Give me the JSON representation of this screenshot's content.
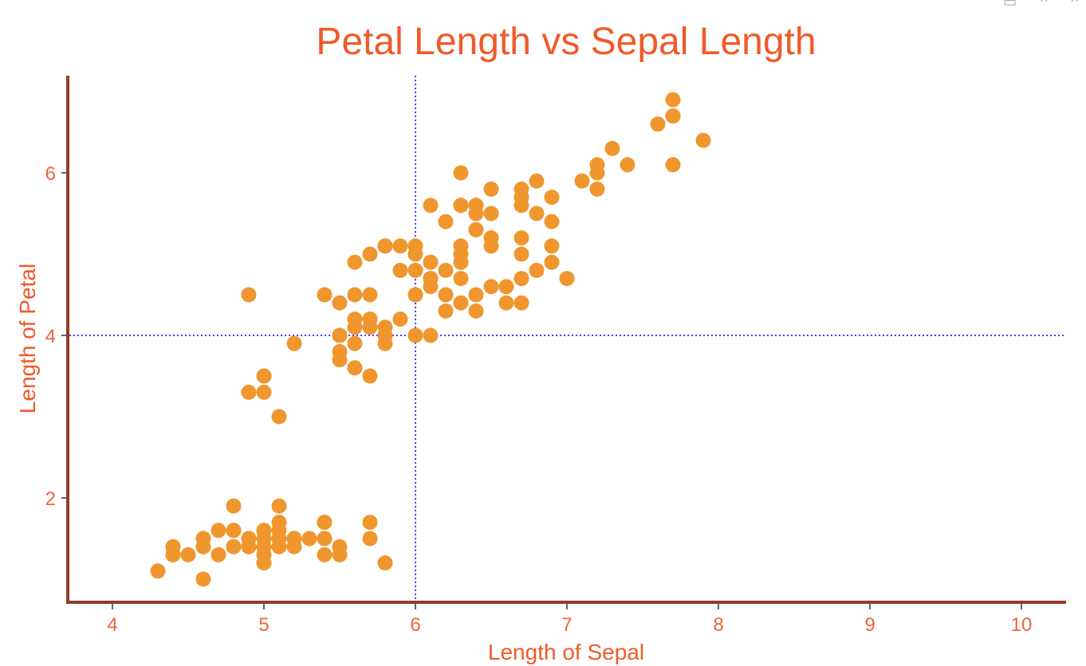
{
  "window_controls": [
    "export-icon",
    "collapse-icon",
    "collapse-icon"
  ],
  "chart_data": {
    "type": "scatter",
    "title": "Petal Length vs Sepal Length",
    "xlabel": "Length of Sepal",
    "ylabel": "Length of Petal",
    "xlim": [
      3.7,
      10.3
    ],
    "ylim": [
      0.72,
      7.2
    ],
    "xticks": [
      4,
      5,
      6,
      7,
      8,
      9,
      10
    ],
    "yticks": [
      2,
      4,
      6
    ],
    "grid": false,
    "reference_lines": {
      "x": 6,
      "y": 4,
      "style": "dotted",
      "color": "#0000ff"
    },
    "colors": {
      "title": "#f05a28",
      "tick_labels": "#f0643a",
      "points": "#f0962e",
      "axis": "#963a2c"
    },
    "points": [
      [
        5.1,
        1.4
      ],
      [
        4.9,
        1.4
      ],
      [
        4.7,
        1.3
      ],
      [
        4.6,
        1.5
      ],
      [
        5.0,
        1.4
      ],
      [
        5.4,
        1.7
      ],
      [
        4.6,
        1.4
      ],
      [
        5.0,
        1.5
      ],
      [
        4.4,
        1.4
      ],
      [
        4.9,
        1.5
      ],
      [
        5.4,
        1.5
      ],
      [
        4.8,
        1.6
      ],
      [
        4.8,
        1.4
      ],
      [
        4.3,
        1.1
      ],
      [
        5.8,
        1.2
      ],
      [
        5.7,
        1.5
      ],
      [
        5.4,
        1.3
      ],
      [
        5.1,
        1.4
      ],
      [
        5.7,
        1.7
      ],
      [
        5.1,
        1.5
      ],
      [
        5.4,
        1.7
      ],
      [
        5.1,
        1.5
      ],
      [
        4.6,
        1.0
      ],
      [
        5.1,
        1.7
      ],
      [
        4.8,
        1.9
      ],
      [
        5.0,
        1.6
      ],
      [
        5.0,
        1.6
      ],
      [
        5.2,
        1.5
      ],
      [
        5.2,
        1.4
      ],
      [
        4.7,
        1.6
      ],
      [
        4.8,
        1.6
      ],
      [
        5.4,
        1.5
      ],
      [
        5.2,
        1.5
      ],
      [
        5.5,
        1.4
      ],
      [
        4.9,
        1.5
      ],
      [
        5.0,
        1.2
      ],
      [
        5.5,
        1.3
      ],
      [
        4.9,
        1.4
      ],
      [
        4.4,
        1.3
      ],
      [
        5.1,
        1.5
      ],
      [
        5.0,
        1.3
      ],
      [
        4.5,
        1.3
      ],
      [
        4.4,
        1.3
      ],
      [
        5.0,
        1.6
      ],
      [
        5.1,
        1.9
      ],
      [
        4.8,
        1.4
      ],
      [
        5.1,
        1.6
      ],
      [
        4.6,
        1.4
      ],
      [
        5.3,
        1.5
      ],
      [
        5.0,
        1.4
      ],
      [
        7.0,
        4.7
      ],
      [
        6.4,
        4.5
      ],
      [
        6.9,
        4.9
      ],
      [
        5.5,
        4.0
      ],
      [
        6.5,
        4.6
      ],
      [
        5.7,
        4.5
      ],
      [
        6.3,
        4.7
      ],
      [
        4.9,
        3.3
      ],
      [
        6.6,
        4.6
      ],
      [
        5.2,
        3.9
      ],
      [
        5.0,
        3.5
      ],
      [
        5.9,
        4.2
      ],
      [
        6.0,
        4.0
      ],
      [
        6.1,
        4.7
      ],
      [
        5.6,
        3.6
      ],
      [
        6.7,
        4.4
      ],
      [
        5.6,
        4.5
      ],
      [
        5.8,
        4.1
      ],
      [
        6.2,
        4.5
      ],
      [
        5.6,
        3.9
      ],
      [
        5.9,
        4.8
      ],
      [
        6.1,
        4.0
      ],
      [
        6.3,
        4.9
      ],
      [
        6.1,
        4.7
      ],
      [
        6.4,
        4.3
      ],
      [
        6.6,
        4.4
      ],
      [
        6.8,
        4.8
      ],
      [
        6.7,
        5.0
      ],
      [
        6.0,
        4.5
      ],
      [
        5.7,
        3.5
      ],
      [
        5.5,
        3.8
      ],
      [
        5.5,
        3.7
      ],
      [
        5.8,
        3.9
      ],
      [
        6.0,
        5.1
      ],
      [
        5.4,
        4.5
      ],
      [
        6.0,
        4.5
      ],
      [
        6.7,
        4.7
      ],
      [
        6.3,
        4.4
      ],
      [
        5.6,
        4.1
      ],
      [
        5.5,
        4.0
      ],
      [
        5.5,
        4.4
      ],
      [
        6.1,
        4.6
      ],
      [
        5.8,
        4.0
      ],
      [
        5.0,
        3.3
      ],
      [
        5.6,
        4.2
      ],
      [
        5.7,
        4.2
      ],
      [
        5.7,
        4.2
      ],
      [
        6.2,
        4.3
      ],
      [
        5.1,
        3.0
      ],
      [
        5.7,
        4.1
      ],
      [
        6.3,
        6.0
      ],
      [
        5.8,
        5.1
      ],
      [
        7.1,
        5.9
      ],
      [
        6.3,
        5.6
      ],
      [
        6.5,
        5.8
      ],
      [
        7.6,
        6.6
      ],
      [
        4.9,
        4.5
      ],
      [
        7.3,
        6.3
      ],
      [
        6.7,
        5.8
      ],
      [
        7.2,
        6.1
      ],
      [
        6.5,
        5.1
      ],
      [
        6.4,
        5.3
      ],
      [
        6.8,
        5.5
      ],
      [
        5.7,
        5.0
      ],
      [
        5.8,
        5.1
      ],
      [
        6.4,
        5.3
      ],
      [
        6.5,
        5.5
      ],
      [
        7.7,
        6.7
      ],
      [
        7.7,
        6.9
      ],
      [
        6.0,
        5.0
      ],
      [
        6.9,
        5.7
      ],
      [
        5.6,
        4.9
      ],
      [
        7.7,
        6.7
      ],
      [
        6.3,
        4.9
      ],
      [
        6.7,
        5.7
      ],
      [
        7.2,
        6.0
      ],
      [
        6.2,
        4.8
      ],
      [
        6.1,
        4.9
      ],
      [
        6.4,
        5.6
      ],
      [
        7.2,
        5.8
      ],
      [
        7.4,
        6.1
      ],
      [
        7.9,
        6.4
      ],
      [
        6.4,
        5.6
      ],
      [
        6.3,
        5.1
      ],
      [
        6.1,
        5.6
      ],
      [
        7.7,
        6.1
      ],
      [
        6.3,
        5.6
      ],
      [
        6.4,
        5.5
      ],
      [
        6.0,
        4.8
      ],
      [
        6.9,
        5.4
      ],
      [
        6.7,
        5.6
      ],
      [
        6.9,
        5.1
      ],
      [
        5.8,
        5.1
      ],
      [
        6.8,
        5.9
      ],
      [
        6.7,
        5.7
      ],
      [
        6.7,
        5.2
      ],
      [
        6.3,
        5.0
      ],
      [
        6.5,
        5.2
      ],
      [
        6.2,
        5.4
      ],
      [
        5.9,
        5.1
      ]
    ]
  }
}
